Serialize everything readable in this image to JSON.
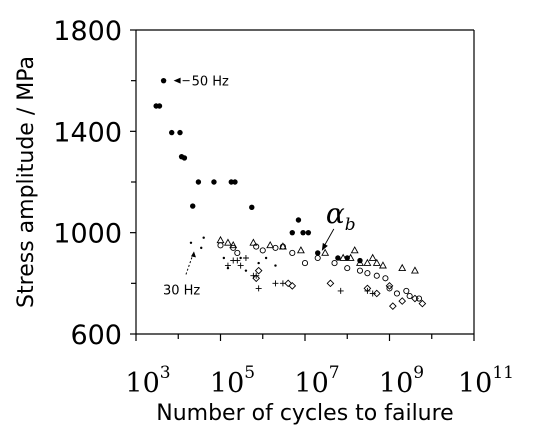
{
  "chart_data": {
    "type": "scatter",
    "title": "",
    "xlabel": "Number of cycles to failure",
    "ylabel": "Stress amplitude / MPa",
    "x_scale": "log",
    "xlim": [
      1000,
      100000000000
    ],
    "ylim": [
      600,
      1800
    ],
    "y_ticks": [
      {
        "value": 600,
        "label": "600"
      },
      {
        "value": 1000,
        "label": "1000"
      },
      {
        "value": 1400,
        "label": "1400"
      },
      {
        "value": 1800,
        "label": "1800"
      }
    ],
    "x_ticks": [
      {
        "value": 1000,
        "base": "10",
        "exp": "3"
      },
      {
        "value": 100000,
        "base": "10",
        "exp": "5"
      },
      {
        "value": 10000000,
        "base": "10",
        "exp": "7"
      },
      {
        "value": 1000000000,
        "base": "10",
        "exp": "9"
      },
      {
        "value": 100000000000,
        "base": "10",
        "exp": "11"
      }
    ],
    "series": [
      {
        "marker": "filled-circle",
        "points": [
          [
            3000,
            1500
          ],
          [
            3600,
            1500
          ],
          [
            4500,
            1600
          ],
          [
            7000,
            1395
          ],
          [
            11000,
            1395
          ],
          [
            12000,
            1300
          ],
          [
            14000,
            1295
          ],
          [
            22000,
            1105
          ],
          [
            30000,
            1200
          ],
          [
            70000,
            1200
          ],
          [
            180000,
            1200
          ],
          [
            220000,
            1200
          ],
          [
            550000,
            1100
          ],
          [
            5000000,
            1000
          ],
          [
            7000000,
            1050
          ],
          [
            9000000,
            1000
          ],
          [
            12000000,
            1000
          ],
          [
            20000000,
            920
          ],
          [
            60000000,
            900
          ],
          [
            100000000,
            900
          ],
          [
            200000000,
            890
          ]
        ]
      },
      {
        "marker": "small-dot",
        "points": [
          [
            20000,
            960
          ],
          [
            40000,
            980
          ],
          [
            35000,
            940
          ],
          [
            120000,
            900
          ],
          [
            150000,
            860
          ],
          [
            300000,
            900
          ],
          [
            400000,
            850
          ],
          [
            800000,
            880
          ],
          [
            1200000,
            900
          ],
          [
            2000000,
            870
          ]
        ]
      },
      {
        "marker": "open-triangle",
        "points": [
          [
            100000,
            970
          ],
          [
            150000,
            960
          ],
          [
            200000,
            950
          ],
          [
            600000,
            960
          ],
          [
            1500000,
            950
          ],
          [
            3000000,
            945
          ],
          [
            8000000,
            930
          ],
          [
            30000000,
            920
          ],
          [
            80000000,
            900
          ],
          [
            120000000,
            900
          ],
          [
            150000000,
            930
          ],
          [
            200000000,
            880
          ],
          [
            300000000,
            880
          ],
          [
            400000000,
            900
          ],
          [
            500000000,
            880
          ],
          [
            700000000,
            870
          ],
          [
            2000000000,
            860
          ],
          [
            4000000000,
            850
          ]
        ]
      },
      {
        "marker": "open-circle",
        "points": [
          [
            100000,
            950
          ],
          [
            200000,
            940
          ],
          [
            250000,
            920
          ],
          [
            700000,
            945
          ],
          [
            1000000,
            930
          ],
          [
            2000000,
            940
          ],
          [
            3000000,
            945
          ],
          [
            5000000,
            920
          ],
          [
            10000000,
            880
          ],
          [
            20000000,
            900
          ],
          [
            50000000,
            880
          ],
          [
            100000000,
            860
          ],
          [
            200000000,
            850
          ],
          [
            300000000,
            840
          ],
          [
            500000000,
            830
          ],
          [
            800000000,
            820
          ],
          [
            1000000000,
            780
          ],
          [
            1500000000,
            760
          ],
          [
            2500000000,
            770
          ],
          [
            3000000000,
            750
          ],
          [
            5000000000,
            740
          ]
        ]
      },
      {
        "marker": "open-diamond",
        "points": [
          [
            700000,
            820
          ],
          [
            800000,
            850
          ],
          [
            4000000,
            800
          ],
          [
            5000000,
            790
          ],
          [
            40000000,
            800
          ],
          [
            300000000,
            780
          ],
          [
            500000000,
            760
          ],
          [
            1000000000,
            790
          ],
          [
            1200000000,
            710
          ],
          [
            2000000000,
            730
          ],
          [
            4000000000,
            740
          ],
          [
            6000000000,
            720
          ]
        ]
      },
      {
        "marker": "plus",
        "points": [
          [
            150000,
            870
          ],
          [
            200000,
            890
          ],
          [
            250000,
            890
          ],
          [
            300000,
            870
          ],
          [
            400000,
            900
          ],
          [
            600000,
            830
          ],
          [
            700000,
            830
          ],
          [
            800000,
            780
          ],
          [
            2000000,
            800
          ],
          [
            3000000,
            800
          ],
          [
            70000000,
            770
          ],
          [
            300000000,
            770
          ],
          [
            400000000,
            760
          ]
        ]
      }
    ],
    "annotations": [
      {
        "text": "50 Hz",
        "at": [
          4500,
          1600
        ]
      },
      {
        "text": "30 Hz",
        "at": [
          20000,
          930
        ]
      },
      {
        "symbol": "α",
        "subscript": "b",
        "at": [
          25000000,
          920
        ]
      }
    ]
  }
}
